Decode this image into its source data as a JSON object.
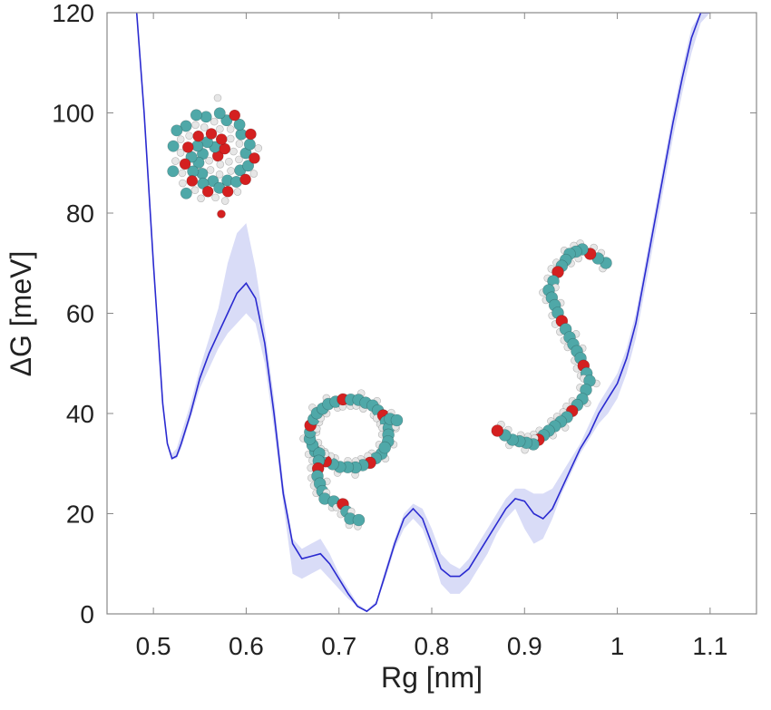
{
  "chart_data": {
    "type": "line",
    "title": "",
    "xlabel": "Rg [nm]",
    "ylabel": "ΔG [meV]",
    "xlim": [
      0.45,
      1.15
    ],
    "ylim": [
      0,
      120
    ],
    "xticks": [
      "0.5",
      "0.6",
      "0.7",
      "0.8",
      "0.9",
      "1",
      "1.1"
    ],
    "yticks": [
      "0",
      "20",
      "40",
      "60",
      "80",
      "100",
      "120"
    ],
    "grid": false,
    "legend": "none",
    "colors": {
      "line": "#2a2ad0",
      "band": "#d9dcf7",
      "frame": "#888888",
      "carbon": "#4fa8a8",
      "oxygen": "#d42020",
      "hydrogen": "#e6e6e6"
    },
    "series": [
      {
        "x": [
          0.482,
          0.49,
          0.5,
          0.51,
          0.515,
          0.52,
          0.525,
          0.53,
          0.54,
          0.55,
          0.56,
          0.57,
          0.58,
          0.59,
          0.6,
          0.61,
          0.62,
          0.63,
          0.64,
          0.65,
          0.66,
          0.67,
          0.68,
          0.69,
          0.7,
          0.71,
          0.72,
          0.73,
          0.74,
          0.75,
          0.76,
          0.77,
          0.78,
          0.79,
          0.8,
          0.81,
          0.82,
          0.83,
          0.84,
          0.85,
          0.86,
          0.87,
          0.88,
          0.89,
          0.9,
          0.91,
          0.92,
          0.93,
          0.94,
          0.95,
          0.96,
          0.97,
          0.98,
          0.99,
          1.0,
          1.01,
          1.02,
          1.03,
          1.04,
          1.05,
          1.06,
          1.07,
          1.08,
          1.09,
          1.1
        ],
        "y": [
          120,
          100,
          70,
          42,
          34,
          31,
          31.5,
          34,
          40,
          47,
          52,
          56,
          60,
          64,
          66,
          63,
          54,
          40,
          24,
          14,
          11,
          11.5,
          12,
          10,
          7,
          4,
          1.5,
          0.5,
          2,
          8,
          14,
          19,
          21,
          19,
          14,
          9,
          7.5,
          7.5,
          9,
          12,
          15,
          18,
          21,
          23,
          22.5,
          20,
          19,
          21,
          25,
          29,
          33,
          36,
          40,
          43,
          46,
          51,
          58,
          68,
          78,
          88,
          98,
          107,
          115,
          120,
          120
        ],
        "lower": [
          120,
          100,
          70,
          42,
          34,
          31,
          31,
          33,
          39,
          45,
          49,
          53,
          56,
          58,
          60,
          58,
          50,
          37,
          22,
          8,
          7,
          8,
          9,
          7,
          5,
          3,
          1.5,
          0.5,
          2,
          7,
          13,
          17,
          19,
          17,
          12,
          6,
          4,
          4,
          6,
          9,
          12,
          16,
          19,
          21,
          17,
          14,
          15,
          19,
          24,
          28,
          32,
          35,
          38,
          40,
          43,
          48,
          55,
          65,
          75,
          85,
          95,
          104,
          112,
          118,
          120
        ],
        "upper": [
          120,
          100,
          70,
          42,
          34,
          32,
          33,
          36,
          42,
          49,
          55,
          61,
          70,
          76,
          78,
          69,
          57,
          43,
          26,
          15,
          13,
          14,
          15,
          12,
          8,
          5,
          2,
          0.8,
          2.5,
          9,
          15,
          20,
          22,
          21,
          17,
          12,
          10,
          9,
          11,
          14,
          17,
          20,
          23,
          25,
          25,
          24,
          24,
          25,
          28,
          31,
          34,
          38,
          42,
          45,
          48,
          53,
          60,
          70,
          80,
          90,
          100,
          109,
          117,
          120,
          120
        ]
      }
    ]
  }
}
